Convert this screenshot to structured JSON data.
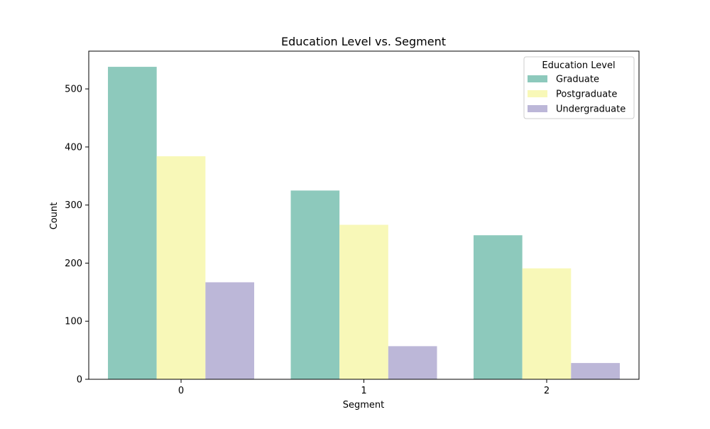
{
  "chart_data": {
    "type": "bar",
    "title": "Education Level vs. Segment",
    "xlabel": "Segment",
    "ylabel": "Count",
    "categories": [
      "0",
      "1",
      "2"
    ],
    "series": [
      {
        "name": "Graduate",
        "values": [
          538,
          325,
          248
        ],
        "color": "#8dc9bc"
      },
      {
        "name": "Postgraduate",
        "values": [
          384,
          266,
          191
        ],
        "color": "#f8f8b8"
      },
      {
        "name": "Undergraduate",
        "values": [
          167,
          57,
          28
        ],
        "color": "#bcb7d8"
      }
    ],
    "ylim": [
      0,
      565
    ],
    "yticks": [
      0,
      100,
      200,
      300,
      400,
      500
    ],
    "grid": false,
    "legend": {
      "title": "Education Level",
      "position": "top-right"
    }
  }
}
